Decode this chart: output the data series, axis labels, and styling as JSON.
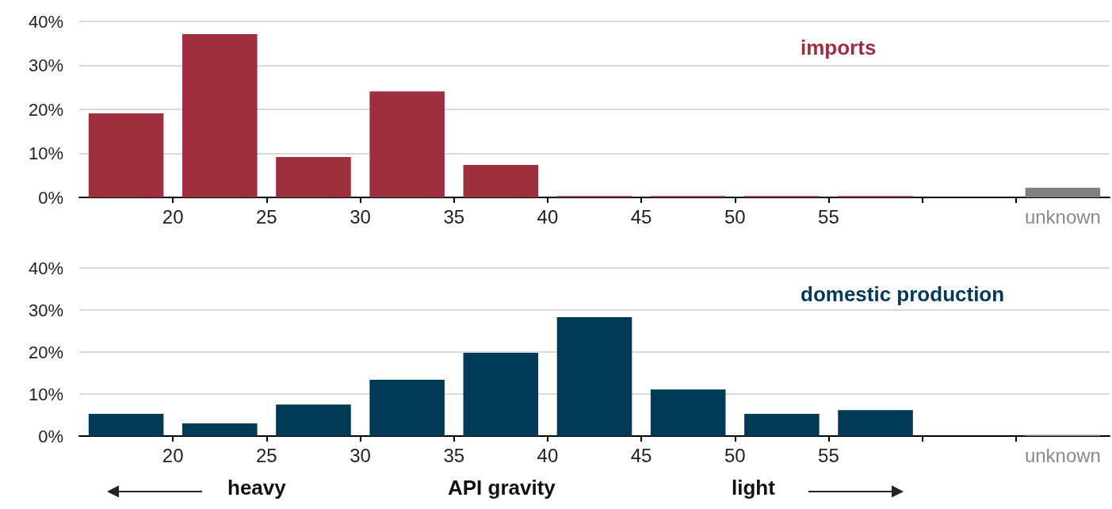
{
  "chart_data": [
    {
      "type": "bar",
      "x": [
        17.5,
        22.5,
        27.5,
        32.5,
        37.5,
        42.5,
        47.5,
        52.5,
        57.5,
        62.5,
        67.5
      ],
      "series": [
        {
          "name": "imports",
          "color": "#9e2f3f",
          "colors": [
            "#9e2f3f",
            "#9e2f3f",
            "#9e2f3f",
            "#9e2f3f",
            "#9e2f3f",
            "#9e2f3f",
            "#9e2f3f",
            "#9e2f3f",
            "#9e2f3f",
            "#9e2f3f",
            "#808080"
          ],
          "values": [
            19.1,
            37.1,
            9.2,
            24.1,
            7.4,
            0.3,
            0.3,
            0.3,
            0.3,
            null,
            2.2
          ]
        }
      ],
      "xlim": [
        15,
        70
      ],
      "xticks": [
        20,
        25,
        30,
        35,
        40,
        45,
        50,
        55,
        {
          "value": 60,
          "label": null
        },
        {
          "value": 65,
          "label": null
        },
        {
          "value": 67.5,
          "label": "unknown"
        }
      ],
      "ylim": [
        0,
        40
      ],
      "yticks": [
        {
          "value": 0,
          "label": "0%"
        },
        {
          "value": 10,
          "label": "10%"
        },
        {
          "value": 20,
          "label": "20%"
        },
        {
          "value": 30,
          "label": "30%"
        },
        {
          "value": 40,
          "label": "40%"
        }
      ],
      "grid": "y",
      "legend": false
    },
    {
      "type": "bar",
      "x": [
        17.5,
        22.5,
        27.5,
        32.5,
        37.5,
        42.5,
        47.5,
        52.5,
        57.5,
        62.5,
        67.5
      ],
      "series": [
        {
          "name": "domestic production",
          "color": "#003a57",
          "colors": [
            "#003a57",
            "#003a57",
            "#003a57",
            "#003a57",
            "#003a57",
            "#003a57",
            "#003a57",
            "#003a57",
            "#003a57",
            "#003a57",
            "#808080"
          ],
          "values": [
            5.3,
            3.0,
            7.5,
            13.4,
            19.8,
            28.3,
            11.1,
            5.3,
            6.2,
            null,
            0.3
          ]
        }
      ],
      "xlim": [
        15,
        70
      ],
      "xticks": [
        20,
        25,
        30,
        35,
        40,
        45,
        50,
        55,
        {
          "value": 60,
          "label": null
        },
        {
          "value": 65,
          "label": null
        },
        {
          "value": 67.5,
          "label": "unknown"
        }
      ],
      "ylim": [
        0,
        40
      ],
      "yticks": [
        {
          "value": 0,
          "label": "0%"
        },
        {
          "value": 10,
          "label": "10%"
        },
        {
          "value": 20,
          "label": "20%"
        },
        {
          "value": 30,
          "label": "30%"
        },
        {
          "value": 40,
          "label": "40%"
        }
      ],
      "grid": "y",
      "legend": false,
      "xlabel": "API gravity",
      "annotations": [
        "heavy",
        "light"
      ]
    }
  ]
}
